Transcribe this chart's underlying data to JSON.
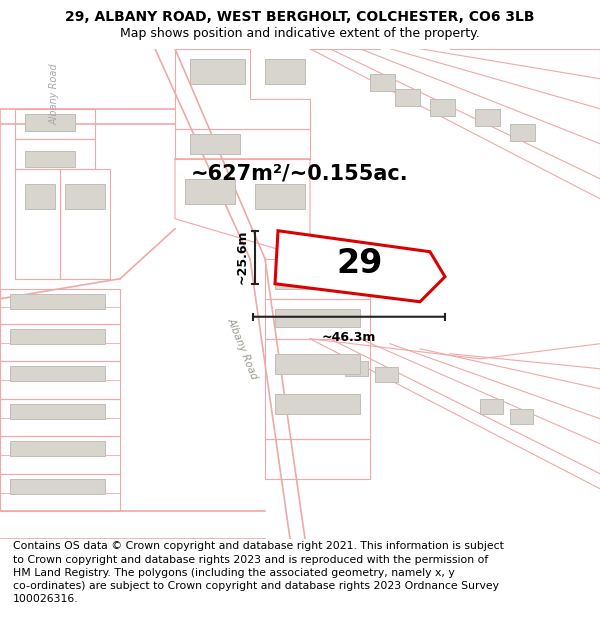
{
  "title": "29, ALBANY ROAD, WEST BERGHOLT, COLCHESTER, CO6 3LB",
  "subtitle": "Map shows position and indicative extent of the property.",
  "area_label": "~627m²/~0.155ac.",
  "dim_width": "~46.3m",
  "dim_height": "~25.6m",
  "number_label": "29",
  "road_label": "Albany Road",
  "road_label2": "Albany Road",
  "copyright_text": "Contains OS data © Crown copyright and database right 2021. This information is subject\nto Crown copyright and database rights 2023 and is reproduced with the permission of\nHM Land Registry. The polygons (including the associated geometry, namely x, y\nco-ordinates) are subject to Crown copyright and database rights 2023 Ordnance Survey\n100026316.",
  "bg_color": "#ffffff",
  "map_bg": "#ffffff",
  "plot_border_color": "#dd0000",
  "road_color": "#f0a8a8",
  "parcel_color": "#f0a8a8",
  "building_color": "#d8d5ce",
  "building_border": "#c0bdb6",
  "dim_line_color": "#222222",
  "title_fontsize": 10,
  "subtitle_fontsize": 9,
  "area_fontsize": 15,
  "number_fontsize": 24,
  "copyright_fontsize": 7.8
}
